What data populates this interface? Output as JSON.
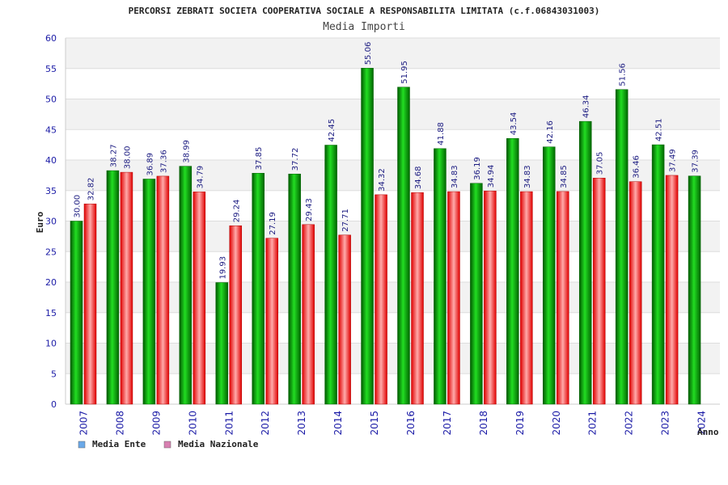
{
  "chart_data": {
    "type": "bar",
    "title": "PERCORSI ZEBRATI SOCIETA COOPERATIVA SOCIALE A RESPONSABILITA LIMITATA (c.f.06843031003)",
    "subtitle": "Media Importi",
    "xlabel": "Anno",
    "ylabel": "Euro",
    "ylim": [
      0,
      60
    ],
    "yticks": [
      "0",
      "5",
      "10",
      "15",
      "20",
      "25",
      "30",
      "35",
      "40",
      "45",
      "50",
      "55",
      "60"
    ],
    "categories": [
      "2007",
      "2008",
      "2009",
      "2010",
      "2011",
      "2012",
      "2013",
      "2014",
      "2015",
      "2016",
      "2017",
      "2018",
      "2019",
      "2020",
      "2021",
      "2022",
      "2023",
      "2024"
    ],
    "series": [
      {
        "name": "Media Ente",
        "values": [
          30.0,
          38.27,
          36.89,
          38.99,
          19.93,
          37.85,
          37.72,
          42.45,
          55.06,
          51.95,
          41.88,
          36.19,
          43.54,
          42.16,
          46.34,
          51.56,
          42.51,
          37.39
        ],
        "labels": [
          "30.00",
          "38.27",
          "36.89",
          "38.99",
          "19.93",
          "37.85",
          "37.72",
          "42.45",
          "55.06",
          "51.95",
          "41.88",
          "36.19",
          "43.54",
          "42.16",
          "46.34",
          "51.56",
          "42.51",
          "37.39"
        ],
        "color": "#00a000",
        "legend_color": "#6aa8e8"
      },
      {
        "name": "Media Nazionale",
        "values": [
          32.82,
          38.0,
          37.36,
          34.79,
          29.24,
          27.19,
          29.43,
          27.71,
          34.32,
          34.68,
          34.83,
          34.94,
          34.83,
          34.85,
          37.05,
          36.46,
          37.49,
          null
        ],
        "labels": [
          "32.82",
          "38.00",
          "37.36",
          "34.79",
          "29.24",
          "27.19",
          "29.43",
          "27.71",
          "34.32",
          "34.68",
          "34.83",
          "34.94",
          "34.83",
          "34.85",
          "37.05",
          "36.46",
          "37.49",
          ""
        ],
        "color": "#e02020",
        "legend_color": "#d77fb0"
      }
    ],
    "grid": true,
    "legend_position": "bottom-left"
  }
}
